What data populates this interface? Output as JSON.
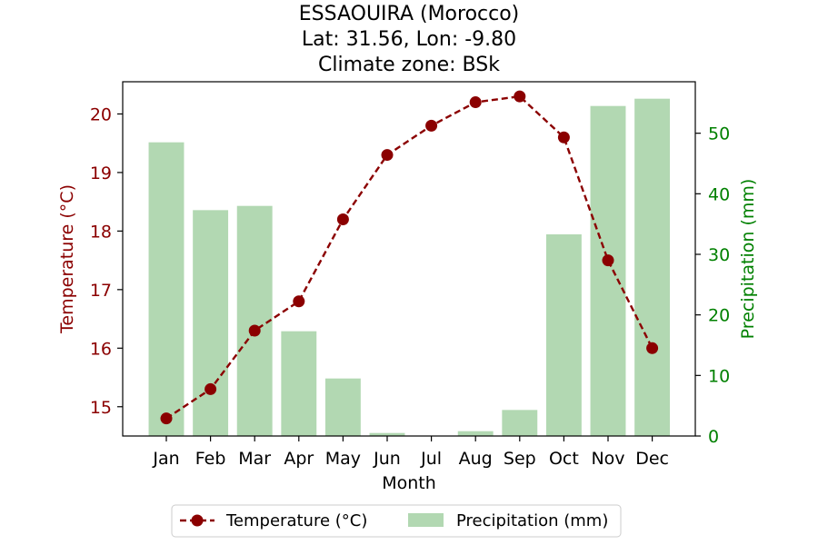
{
  "chart_data": {
    "type": "bar+line",
    "title": [
      "ESSAOUIRA (Morocco)",
      "Lat: 31.56, Lon: -9.80",
      "Climate zone: BSk"
    ],
    "xlabel": "Month",
    "categories": [
      "Jan",
      "Feb",
      "Mar",
      "Apr",
      "May",
      "Jun",
      "Jul",
      "Aug",
      "Sep",
      "Oct",
      "Nov",
      "Dec"
    ],
    "series": [
      {
        "name": "Temperature (°C)",
        "type": "line",
        "axis": "left",
        "style": "dashed with circle markers",
        "color": "#8b0000",
        "values": [
          14.8,
          15.3,
          16.3,
          16.8,
          18.2,
          19.3,
          19.8,
          20.2,
          20.3,
          19.6,
          17.5,
          16.0
        ]
      },
      {
        "name": "Precipitation (mm)",
        "type": "bar",
        "axis": "right",
        "color": "#b2d8b2",
        "values": [
          48.5,
          37.3,
          38.0,
          17.3,
          9.5,
          0.5,
          0.0,
          0.8,
          4.3,
          33.3,
          54.5,
          55.7
        ]
      }
    ],
    "y_left": {
      "label": "Temperature (°C)",
      "color": "#8b0000",
      "range": [
        14.5,
        20.55
      ],
      "ticks": [
        "15",
        "16",
        "17",
        "18",
        "19",
        "20"
      ]
    },
    "y_right": {
      "label": "Precipitation (mm)",
      "color": "#008000",
      "range": [
        0,
        58.5
      ],
      "ticks": [
        "0",
        "10",
        "20",
        "30",
        "40",
        "50"
      ]
    },
    "grid": false,
    "legend_position": "bottom-center"
  }
}
